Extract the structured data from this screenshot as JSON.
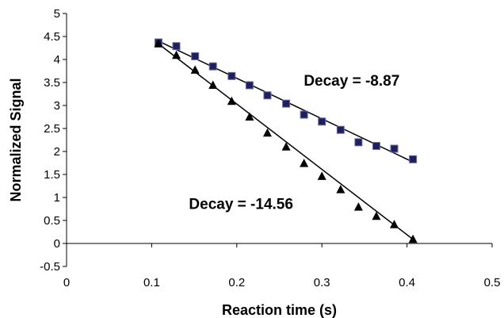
{
  "chart_data": {
    "type": "scatter",
    "xlabel": "Reaction time (s)",
    "ylabel": "Normalized Signal",
    "xlim": [
      0,
      0.5
    ],
    "ylim": [
      -0.5,
      5
    ],
    "x_ticks": [
      "0",
      "0.1",
      "0.2",
      "0.3",
      "0.4",
      "0.5"
    ],
    "y_ticks": [
      "-0.5",
      "0",
      "0.5",
      "1",
      "1.5",
      "2",
      "2.5",
      "3",
      "3.5",
      "4",
      "4.5",
      "5"
    ],
    "grid": false,
    "legend": "none",
    "series": [
      {
        "marker": "square",
        "color": "#1f1f5a",
        "x": [
          0.108,
          0.129,
          0.151,
          0.172,
          0.194,
          0.215,
          0.236,
          0.258,
          0.279,
          0.3,
          0.322,
          0.343,
          0.364,
          0.385,
          0.407
        ],
        "y": [
          4.37,
          4.29,
          4.07,
          3.85,
          3.64,
          3.44,
          3.22,
          3.04,
          2.8,
          2.65,
          2.47,
          2.2,
          2.12,
          2.06,
          1.83
        ],
        "fit": {
          "x": [
            0.108,
            0.407
          ],
          "y": [
            4.4,
            1.77
          ]
        }
      },
      {
        "marker": "triangle",
        "color": "#000000",
        "x": [
          0.108,
          0.129,
          0.151,
          0.172,
          0.194,
          0.215,
          0.236,
          0.258,
          0.279,
          0.3,
          0.322,
          0.343,
          0.364,
          0.385,
          0.407
        ],
        "y": [
          4.34,
          4.09,
          3.77,
          3.44,
          3.09,
          2.75,
          2.4,
          2.1,
          1.74,
          1.46,
          1.17,
          0.79,
          0.59,
          0.41,
          0.09
        ]
      }
    ],
    "annotations": [
      {
        "text": "Decay = -8.87",
        "x": 0.335,
        "y": 3.55
      },
      {
        "text": "Decay = -14.56",
        "x": 0.205,
        "y": 0.87
      }
    ]
  }
}
